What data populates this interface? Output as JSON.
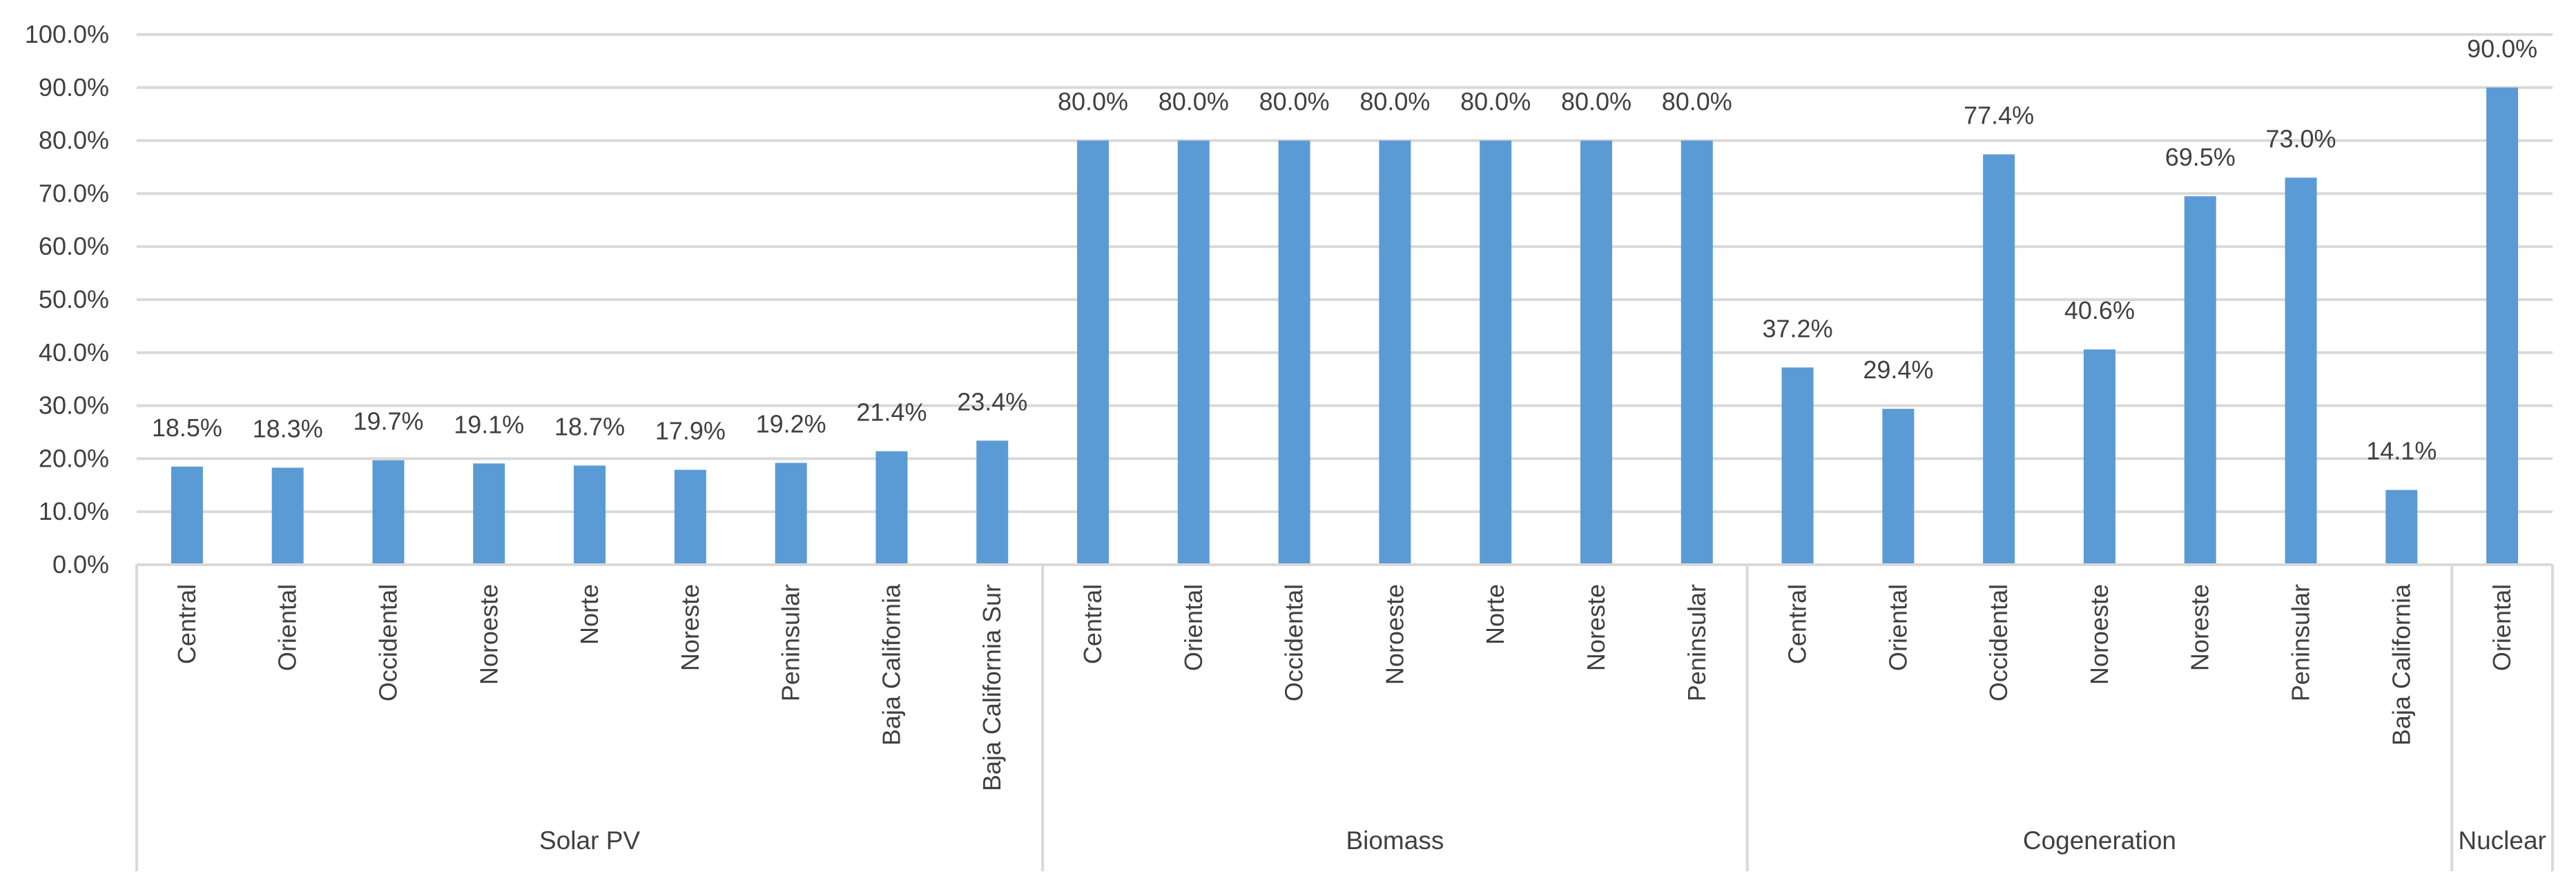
{
  "chart_data": {
    "type": "bar",
    "title": "",
    "xlabel": "",
    "ylabel": "",
    "ylim": [
      0,
      100
    ],
    "y_ticks": [
      "0.0%",
      "10.0%",
      "20.0%",
      "30.0%",
      "40.0%",
      "50.0%",
      "60.0%",
      "70.0%",
      "80.0%",
      "90.0%",
      "100.0%"
    ],
    "grid": true,
    "bar_color": "#5b9bd5",
    "groups": [
      {
        "name": "Solar PV",
        "categories": [
          "Central",
          "Oriental",
          "Occidental",
          "Noroeste",
          "Norte",
          "Noreste",
          "Peninsular",
          "Baja California",
          "Baja California Sur"
        ],
        "values": [
          18.5,
          18.3,
          19.7,
          19.1,
          18.7,
          17.9,
          19.2,
          21.4,
          23.4
        ],
        "labels": [
          "18.5%",
          "18.3%",
          "19.7%",
          "19.1%",
          "18.7%",
          "17.9%",
          "19.2%",
          "21.4%",
          "23.4%"
        ]
      },
      {
        "name": "Biomass",
        "categories": [
          "Central",
          "Oriental",
          "Occidental",
          "Noroeste",
          "Norte",
          "Noreste",
          "Peninsular"
        ],
        "values": [
          80.0,
          80.0,
          80.0,
          80.0,
          80.0,
          80.0,
          80.0
        ],
        "labels": [
          "80.0%",
          "80.0%",
          "80.0%",
          "80.0%",
          "80.0%",
          "80.0%",
          "80.0%"
        ]
      },
      {
        "name": "Cogeneration",
        "categories": [
          "Central",
          "Oriental",
          "Occidental",
          "Noroeste",
          "Noreste",
          "Peninsular",
          "Baja California"
        ],
        "values": [
          37.2,
          29.4,
          77.4,
          40.6,
          69.5,
          73.0,
          14.1
        ],
        "labels": [
          "37.2%",
          "29.4%",
          "77.4%",
          "40.6%",
          "69.5%",
          "73.0%",
          "14.1%"
        ]
      },
      {
        "name": "Nuclear",
        "categories": [
          "Oriental"
        ],
        "values": [
          90.0
        ],
        "labels": [
          "90.0%"
        ]
      }
    ]
  }
}
